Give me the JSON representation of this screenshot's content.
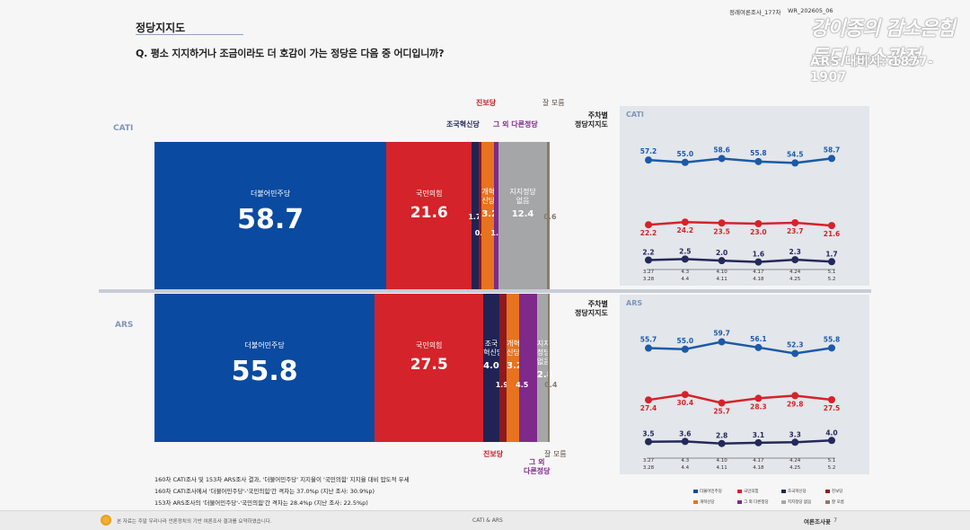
{
  "header": {
    "title": "정당지지도",
    "question": "Q. 평소 지지하거나 조금이라도 더 호감이 가는 정당은 다음 중 어디입니까?",
    "tag_survey": "정례여론조사_177차",
    "tag_code": "WR_202605_06"
  },
  "watermark": {
    "line1": "강이종의 감소은힘들디 뉴스광정",
    "line2": "ARS 대비시: 1877-1907"
  },
  "colors": {
    "democratic": "#0a4aa0",
    "ppp": "#d4232a",
    "rebuild": "#1f2454",
    "reform": "#e7731f",
    "progressive": "#8e1a20",
    "others": "#7f2a8a",
    "none": "#a5a6a8",
    "dontknow": "#8d7a6a"
  },
  "chart_data": [
    {
      "type": "bar",
      "mode": "CATI",
      "stacked_horizontal": true,
      "categories": [
        "더불어민주당",
        "국민의힘",
        "조국혁신당",
        "진보당",
        "개혁신당",
        "그 외 다른정당",
        "지지정당 없음",
        "잘 모름"
      ],
      "values": [
        58.7,
        21.6,
        1.7,
        0.8,
        3.2,
        1.0,
        12.4,
        0.6
      ],
      "labels": {
        "dem_name": "더불어민주당",
        "dem_val": "58.7",
        "ppp_name": "국민의힘",
        "ppp_val": "21.6",
        "reform_name": "개혁\n신당",
        "reform_val": "3.2",
        "none_name": "지지정당\n없음",
        "none_val": "12.4",
        "rebuild_val": "1.7",
        "progressive_val": "0.8",
        "others_val": "1.0",
        "dontknow_val": "0.6",
        "call_progressive": "진보당",
        "call_rebuild": "조국혁신당",
        "call_others": "그 외 다른정당",
        "call_dontknow": "잘 모름"
      }
    },
    {
      "type": "bar",
      "mode": "ARS",
      "stacked_horizontal": true,
      "categories": [
        "더불어민주당",
        "국민의힘",
        "조국혁신당",
        "진보당",
        "개혁신당",
        "그 외 다른정당",
        "지지정당 없음",
        "잘 모름"
      ],
      "values": [
        55.8,
        27.5,
        4.0,
        1.9,
        3.2,
        4.5,
        2.8,
        0.4
      ],
      "labels": {
        "dem_name": "더불어민주당",
        "dem_val": "55.8",
        "ppp_name": "국민의힘",
        "ppp_val": "27.5",
        "rebuild_name": "조국\n혁신당",
        "rebuild_val": "4.0",
        "reform_name": "개혁\n신당",
        "reform_val": "3.2",
        "none_name": "지지\n정당\n없음",
        "none_val": "2.8",
        "progressive_val": "1.9",
        "others_val": "4.5",
        "dontknow_val": "0.4",
        "call_progressive": "진보당",
        "call_others": "그 외\n다른정당",
        "call_dontknow": "잘 모름"
      }
    },
    {
      "type": "line",
      "mode": "CATI",
      "title": "주차별\n정당지지도",
      "x": [
        "3.27\n3.28",
        "4.3\n4.4",
        "4.10\n4.11",
        "4.17\n4.18",
        "4.24\n4.25",
        "5.1\n5.2"
      ],
      "series": [
        {
          "name": "더불어민주당",
          "values": [
            57.2,
            55.0,
            58.6,
            55.8,
            54.5,
            58.7
          ],
          "labels": [
            "57.2",
            "55.0",
            "58.6",
            "55.8",
            "54.5",
            "58.7"
          ]
        },
        {
          "name": "국민의힘",
          "values": [
            22.2,
            24.2,
            23.5,
            23.0,
            23.7,
            21.6
          ],
          "labels": [
            "22.2",
            "24.2",
            "23.5",
            "23.0",
            "23.7",
            "21.6"
          ]
        },
        {
          "name": "조국혁신당",
          "values": [
            2.2,
            2.5,
            2.0,
            1.6,
            2.3,
            1.7
          ],
          "labels": [
            "2.2",
            "2.5",
            "2.0",
            "1.6",
            "2.3",
            "1.7"
          ]
        }
      ]
    },
    {
      "type": "line",
      "mode": "ARS",
      "title": "주차별\n정당지지도",
      "x": [
        "3.27\n3.28",
        "4.3\n4.4",
        "4.10\n4.11",
        "4.17\n4.18",
        "4.24\n4.25",
        "5.1\n5.2"
      ],
      "series": [
        {
          "name": "더불어민주당",
          "values": [
            55.7,
            55.0,
            59.7,
            56.1,
            52.3,
            55.8
          ],
          "labels": [
            "55.7",
            "55.0",
            "59.7",
            "56.1",
            "52.3",
            "55.8"
          ]
        },
        {
          "name": "국민의힘",
          "values": [
            27.4,
            30.4,
            25.7,
            28.3,
            29.8,
            27.5
          ],
          "labels": [
            "27.4",
            "30.4",
            "25.7",
            "28.3",
            "29.8",
            "27.5"
          ]
        },
        {
          "name": "조국혁신당",
          "values": [
            3.5,
            3.6,
            2.8,
            3.1,
            3.3,
            4.0
          ],
          "labels": [
            "3.5",
            "3.6",
            "2.8",
            "3.1",
            "3.3",
            "4.0"
          ]
        }
      ]
    }
  ],
  "notes": [
    "160차 CATI조사 및 153차 ARS조사 결과, '더불어민주당' 지지율이 '국민의힘' 지지율 대비 압도적 우세",
    "160차 CATI조사에서 '더불어민주당'-'국민의힘'간 격차는 37.0%p (지난 조사: 30.9%p)",
    "153차 ARS조사의 '더불어민주당'-'국민의힘'간 격차는 28.4%p (지난 조사: 22.5%p)"
  ],
  "legend": [
    "더불어민주당",
    "국민의힘",
    "조국혁신당",
    "진보당",
    "개혁신당",
    "그 외 다른정당",
    "지지정당 없음",
    "잘 모름"
  ],
  "footer": {
    "left_note": "본 자료는 주말 우리나라 언론정치의 기반 여론조사 결과를 요약하였습니다.",
    "center": "CATI & ARS",
    "right": "여론조사꽃",
    "page": "7"
  }
}
